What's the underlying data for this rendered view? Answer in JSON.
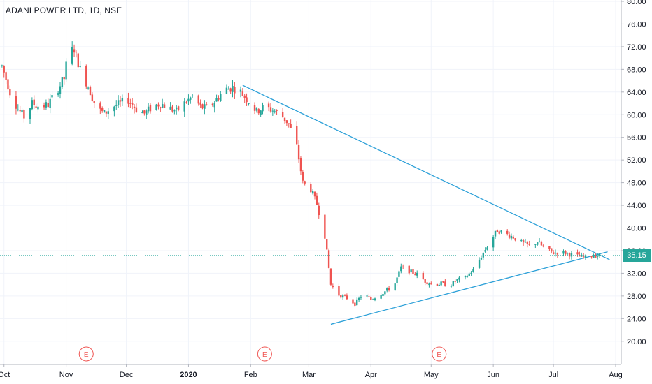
{
  "header": {
    "title": "ADANI POWER LTD, 1D, NSE"
  },
  "last_price": {
    "label": "35.15",
    "value": 35.15,
    "color": "#26a69a"
  },
  "colors": {
    "up": "#26a69a",
    "down": "#ef5350",
    "trendline": "#2ca0d8",
    "grid": "#f0f3fa",
    "axis": "#b2b5be"
  },
  "earnings_marker": {
    "label": "E",
    "dates": [
      "2019-11-11",
      "2020-02-08",
      "2020-05-05"
    ]
  },
  "chart_data": {
    "type": "candlestick",
    "x_range": [
      "2019-09-29",
      "2020-08-01"
    ],
    "ylim": [
      18,
      80
    ],
    "y_ticks": [
      20,
      24,
      28,
      32,
      36,
      40,
      44,
      48,
      52,
      56,
      60,
      64,
      68,
      72,
      76,
      80
    ],
    "y_tick_labels": [
      "20.00",
      "24.00",
      "28.00",
      "32.00",
      "36.00",
      "40.00",
      "44.00",
      "48.00",
      "52.00",
      "56.00",
      "60.00",
      "64.00",
      "68.00",
      "72.00",
      "76.00",
      "80.00"
    ],
    "x_ticks": [
      {
        "label": "Oct",
        "date": "2019-10-01",
        "bold": false
      },
      {
        "label": "Nov",
        "date": "2019-11-01",
        "bold": false
      },
      {
        "label": "Dec",
        "date": "2019-12-01",
        "bold": false
      },
      {
        "label": "2020",
        "date": "2020-01-01",
        "bold": true
      },
      {
        "label": "Feb",
        "date": "2020-02-01",
        "bold": false
      },
      {
        "label": "Mar",
        "date": "2020-03-01",
        "bold": false
      },
      {
        "label": "Apr",
        "date": "2020-04-01",
        "bold": false
      },
      {
        "label": "May",
        "date": "2020-05-01",
        "bold": false
      },
      {
        "label": "Jun",
        "date": "2020-06-01",
        "bold": false
      },
      {
        "label": "Jul",
        "date": "2020-07-01",
        "bold": false
      },
      {
        "label": "Aug",
        "date": "2020-08-01",
        "bold": false
      }
    ],
    "price_path": [
      [
        "2019-09-30",
        68.6
      ],
      [
        "2019-10-04",
        64.0
      ],
      [
        "2019-10-08",
        61.0
      ],
      [
        "2019-10-11",
        59.6
      ],
      [
        "2019-10-15",
        62.0
      ],
      [
        "2019-10-19",
        61.4
      ],
      [
        "2019-10-23",
        61.8
      ],
      [
        "2019-10-27",
        64.0
      ],
      [
        "2019-10-31",
        66.4
      ],
      [
        "2019-11-02",
        71.0
      ],
      [
        "2019-11-05",
        71.6
      ],
      [
        "2019-11-08",
        68.0
      ],
      [
        "2019-11-12",
        65.0
      ],
      [
        "2019-11-16",
        61.2
      ],
      [
        "2019-11-20",
        60.2
      ],
      [
        "2019-11-24",
        61.4
      ],
      [
        "2019-11-28",
        62.0
      ],
      [
        "2019-12-02",
        62.6
      ],
      [
        "2019-12-06",
        61.0
      ],
      [
        "2019-12-10",
        60.2
      ],
      [
        "2019-12-14",
        61.4
      ],
      [
        "2019-12-18",
        62.0
      ],
      [
        "2019-12-22",
        61.2
      ],
      [
        "2019-12-26",
        60.6
      ],
      [
        "2019-12-30",
        62.0
      ],
      [
        "2020-01-03",
        63.2
      ],
      [
        "2020-01-07",
        61.4
      ],
      [
        "2020-01-11",
        61.0
      ],
      [
        "2020-01-15",
        62.8
      ],
      [
        "2020-01-19",
        64.4
      ],
      [
        "2020-01-23",
        64.8
      ],
      [
        "2020-01-27",
        64.0
      ],
      [
        "2020-01-31",
        62.4
      ],
      [
        "2020-02-04",
        60.6
      ],
      [
        "2020-02-08",
        61.4
      ],
      [
        "2020-02-12",
        60.8
      ],
      [
        "2020-02-16",
        60.0
      ],
      [
        "2020-02-20",
        58.4
      ],
      [
        "2020-02-24",
        54.4
      ],
      [
        "2020-02-27",
        48.0
      ],
      [
        "2020-03-02",
        46.8
      ],
      [
        "2020-03-05",
        44.2
      ],
      [
        "2020-03-09",
        38.6
      ],
      [
        "2020-03-12",
        30.0
      ],
      [
        "2020-03-16",
        28.2
      ],
      [
        "2020-03-20",
        27.6
      ],
      [
        "2020-03-24",
        26.6
      ],
      [
        "2020-03-28",
        28.4
      ],
      [
        "2020-04-01",
        27.4
      ],
      [
        "2020-04-05",
        28.2
      ],
      [
        "2020-04-09",
        29.0
      ],
      [
        "2020-04-13",
        30.2
      ],
      [
        "2020-04-16",
        33.0
      ],
      [
        "2020-04-20",
        32.4
      ],
      [
        "2020-04-24",
        31.8
      ],
      [
        "2020-04-28",
        30.6
      ],
      [
        "2020-05-02",
        30.0
      ],
      [
        "2020-05-06",
        30.2
      ],
      [
        "2020-05-10",
        29.8
      ],
      [
        "2020-05-14",
        30.8
      ],
      [
        "2020-05-18",
        31.2
      ],
      [
        "2020-05-22",
        32.6
      ],
      [
        "2020-05-26",
        35.0
      ],
      [
        "2020-05-30",
        37.4
      ],
      [
        "2020-06-03",
        39.6
      ],
      [
        "2020-06-07",
        39.0
      ],
      [
        "2020-06-11",
        38.4
      ],
      [
        "2020-06-15",
        37.4
      ],
      [
        "2020-06-19",
        36.8
      ],
      [
        "2020-06-23",
        37.6
      ],
      [
        "2020-06-27",
        36.2
      ],
      [
        "2020-07-01",
        35.6
      ],
      [
        "2020-07-05",
        35.8
      ],
      [
        "2020-07-09",
        35.4
      ],
      [
        "2020-07-13",
        35.0
      ],
      [
        "2020-07-17",
        34.8
      ],
      [
        "2020-07-21",
        35.2
      ],
      [
        "2020-07-24",
        35.15
      ]
    ],
    "trendlines": [
      {
        "name": "",
        "from": [
          "2020-01-28",
          65.2
        ],
        "to": [
          "2020-07-29",
          34.4
        ]
      },
      {
        "name": "",
        "from": [
          "2020-03-12",
          23.0
        ],
        "to": [
          "2020-07-28",
          35.8
        ]
      }
    ],
    "grid": true,
    "legend": "none"
  }
}
